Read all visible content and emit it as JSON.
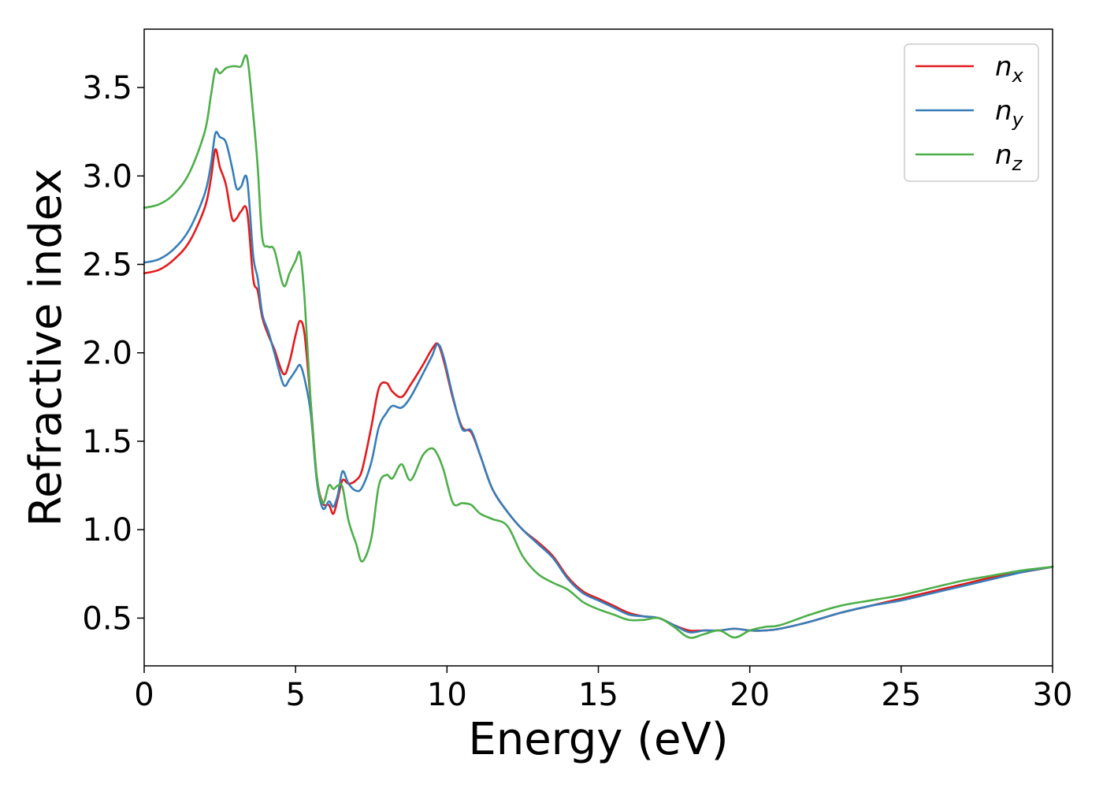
{
  "chart_data": {
    "type": "line",
    "xlabel": "Energy (eV)",
    "ylabel": "Refractive index",
    "xlim": [
      0,
      30
    ],
    "ylim": [
      0.23,
      3.83
    ],
    "xticks": [
      0,
      5,
      10,
      15,
      20,
      25,
      30
    ],
    "yticks": [
      0.5,
      1.0,
      1.5,
      2.0,
      2.5,
      3.0,
      3.5
    ],
    "grid": false,
    "legend_position": "top-right",
    "series": [
      {
        "name": "n_x",
        "label_main": "n",
        "label_sub": "x",
        "color": "#e41a1c",
        "x": [
          0,
          0.5,
          1.0,
          1.5,
          2.0,
          2.2,
          2.35,
          2.5,
          2.7,
          2.9,
          3.05,
          3.2,
          3.4,
          3.6,
          3.75,
          3.9,
          4.1,
          4.3,
          4.6,
          4.8,
          5.0,
          5.15,
          5.3,
          5.5,
          5.7,
          5.9,
          6.1,
          6.25,
          6.4,
          6.55,
          6.75,
          7.0,
          7.2,
          7.5,
          7.75,
          8.0,
          8.2,
          8.5,
          8.8,
          9.2,
          9.5,
          9.7,
          9.9,
          10.2,
          10.5,
          10.8,
          11.1,
          11.5,
          12.0,
          12.5,
          13.0,
          13.5,
          14.0,
          14.5,
          15.0,
          15.5,
          16.0,
          16.5,
          17.0,
          17.5,
          18.0,
          18.5,
          19.0,
          19.5,
          20.0,
          20.5,
          21.0,
          22.0,
          23.0,
          24.0,
          25.0,
          26.0,
          27.0,
          28.0,
          29.0,
          30.0
        ],
        "y": [
          2.45,
          2.47,
          2.53,
          2.63,
          2.82,
          2.98,
          3.15,
          3.05,
          2.95,
          2.76,
          2.76,
          2.8,
          2.8,
          2.42,
          2.35,
          2.2,
          2.1,
          2.02,
          1.88,
          1.95,
          2.1,
          2.18,
          2.1,
          1.72,
          1.3,
          1.15,
          1.14,
          1.09,
          1.18,
          1.28,
          1.26,
          1.28,
          1.34,
          1.58,
          1.8,
          1.83,
          1.78,
          1.75,
          1.82,
          1.93,
          2.02,
          2.05,
          1.95,
          1.74,
          1.58,
          1.55,
          1.42,
          1.23,
          1.1,
          1.0,
          0.93,
          0.85,
          0.73,
          0.65,
          0.61,
          0.57,
          0.53,
          0.51,
          0.5,
          0.46,
          0.43,
          0.43,
          0.43,
          0.44,
          0.43,
          0.43,
          0.44,
          0.48,
          0.53,
          0.57,
          0.61,
          0.65,
          0.69,
          0.73,
          0.76,
          0.79
        ]
      },
      {
        "name": "n_y",
        "label_main": "n",
        "label_sub": "y",
        "color": "#377eb8",
        "x": [
          0,
          0.5,
          1.0,
          1.5,
          2.0,
          2.2,
          2.35,
          2.5,
          2.7,
          2.9,
          3.05,
          3.2,
          3.4,
          3.6,
          3.75,
          3.9,
          4.1,
          4.3,
          4.6,
          4.8,
          5.0,
          5.15,
          5.3,
          5.5,
          5.7,
          5.9,
          6.1,
          6.25,
          6.4,
          6.55,
          6.75,
          7.0,
          7.2,
          7.5,
          7.75,
          8.0,
          8.2,
          8.5,
          8.8,
          9.2,
          9.5,
          9.7,
          9.9,
          10.2,
          10.5,
          10.8,
          11.1,
          11.5,
          12.0,
          12.5,
          13.0,
          13.5,
          14.0,
          14.5,
          15.0,
          15.5,
          16.0,
          16.5,
          17.0,
          17.5,
          18.0,
          18.5,
          19.0,
          19.5,
          20.0,
          20.5,
          21.0,
          22.0,
          23.0,
          24.0,
          25.0,
          26.0,
          27.0,
          28.0,
          29.0,
          30.0
        ],
        "y": [
          2.51,
          2.53,
          2.59,
          2.7,
          2.9,
          3.06,
          3.24,
          3.22,
          3.19,
          3.05,
          2.93,
          2.94,
          2.98,
          2.55,
          2.42,
          2.22,
          2.12,
          2.0,
          1.82,
          1.85,
          1.9,
          1.93,
          1.85,
          1.66,
          1.28,
          1.12,
          1.16,
          1.13,
          1.2,
          1.33,
          1.26,
          1.22,
          1.24,
          1.38,
          1.58,
          1.66,
          1.7,
          1.69,
          1.75,
          1.88,
          1.98,
          2.05,
          1.97,
          1.75,
          1.57,
          1.56,
          1.42,
          1.23,
          1.1,
          1.0,
          0.92,
          0.84,
          0.72,
          0.64,
          0.6,
          0.56,
          0.52,
          0.51,
          0.5,
          0.46,
          0.42,
          0.43,
          0.43,
          0.44,
          0.43,
          0.43,
          0.44,
          0.48,
          0.53,
          0.57,
          0.6,
          0.64,
          0.68,
          0.72,
          0.76,
          0.79
        ]
      },
      {
        "name": "n_z",
        "label_main": "n",
        "label_sub": "z",
        "color": "#4daf4a",
        "x": [
          0,
          0.5,
          1.0,
          1.5,
          2.0,
          2.2,
          2.35,
          2.5,
          2.7,
          2.9,
          3.05,
          3.2,
          3.4,
          3.6,
          3.75,
          3.9,
          4.1,
          4.3,
          4.6,
          4.8,
          5.0,
          5.15,
          5.3,
          5.5,
          5.7,
          5.9,
          6.1,
          6.25,
          6.4,
          6.55,
          6.75,
          7.0,
          7.2,
          7.5,
          7.75,
          8.0,
          8.2,
          8.5,
          8.8,
          9.2,
          9.5,
          9.7,
          9.9,
          10.2,
          10.5,
          10.8,
          11.1,
          11.5,
          12.0,
          12.5,
          13.0,
          13.5,
          14.0,
          14.5,
          15.0,
          15.5,
          16.0,
          16.5,
          17.0,
          17.5,
          18.0,
          18.5,
          19.0,
          19.5,
          20.0,
          20.5,
          21.0,
          22.0,
          23.0,
          24.0,
          25.0,
          26.0,
          27.0,
          28.0,
          29.0,
          30.0
        ],
        "y": [
          2.82,
          2.84,
          2.9,
          3.02,
          3.25,
          3.45,
          3.6,
          3.58,
          3.61,
          3.62,
          3.62,
          3.62,
          3.67,
          3.35,
          3.05,
          2.65,
          2.6,
          2.58,
          2.38,
          2.45,
          2.52,
          2.56,
          2.3,
          1.72,
          1.3,
          1.15,
          1.25,
          1.23,
          1.25,
          1.24,
          1.05,
          0.92,
          0.82,
          0.95,
          1.25,
          1.31,
          1.29,
          1.37,
          1.28,
          1.42,
          1.46,
          1.42,
          1.33,
          1.15,
          1.15,
          1.14,
          1.09,
          1.06,
          1.02,
          0.85,
          0.75,
          0.7,
          0.66,
          0.59,
          0.55,
          0.52,
          0.49,
          0.49,
          0.5,
          0.45,
          0.39,
          0.41,
          0.43,
          0.39,
          0.43,
          0.45,
          0.46,
          0.52,
          0.57,
          0.6,
          0.63,
          0.67,
          0.71,
          0.74,
          0.77,
          0.79
        ]
      }
    ]
  }
}
